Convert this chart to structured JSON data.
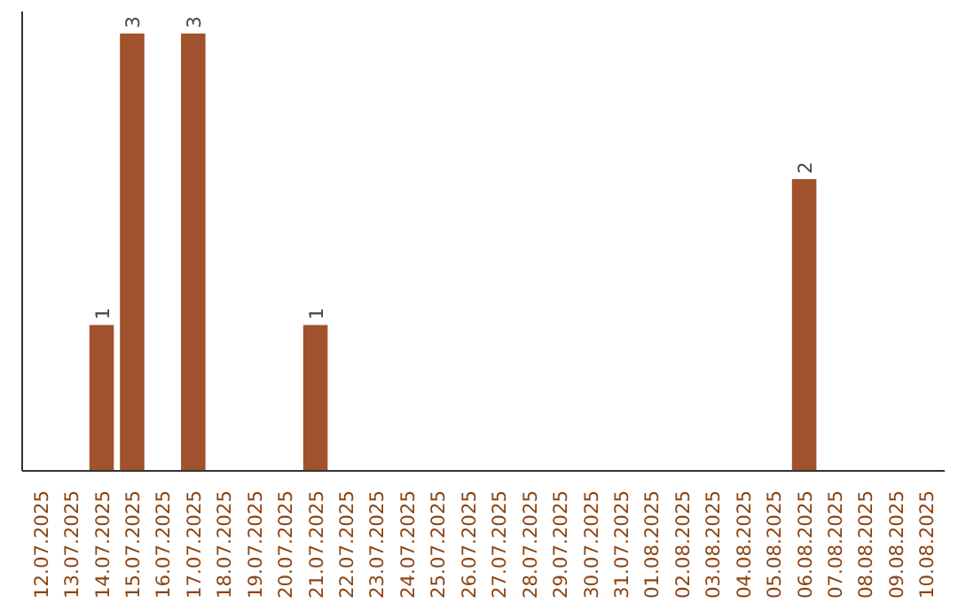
{
  "chart_data": {
    "type": "bar",
    "categories": [
      "12.07.2025",
      "13.07.2025",
      "14.07.2025",
      "15.07.2025",
      "16.07.2025",
      "17.07.2025",
      "18.07.2025",
      "19.07.2025",
      "20.07.2025",
      "21.07.2025",
      "22.07.2025",
      "23.07.2025",
      "24.07.2025",
      "25.07.2025",
      "26.07.2025",
      "27.07.2025",
      "28.07.2025",
      "29.07.2025",
      "30.07.2025",
      "31.07.2025",
      "01.08.2025",
      "02.08.2025",
      "03.08.2025",
      "04.08.2025",
      "05.08.2025",
      "06.08.2025",
      "07.08.2025",
      "08.08.2025",
      "09.08.2025",
      "10.08.2025"
    ],
    "values": [
      0,
      0,
      1,
      3,
      0,
      3,
      0,
      0,
      0,
      1,
      0,
      0,
      0,
      0,
      0,
      0,
      0,
      0,
      0,
      0,
      0,
      0,
      0,
      0,
      0,
      2,
      0,
      0,
      0,
      0
    ],
    "value_labels": [
      null,
      null,
      "1",
      "3",
      null,
      "3",
      null,
      null,
      null,
      "1",
      null,
      null,
      null,
      null,
      null,
      null,
      null,
      null,
      null,
      null,
      null,
      null,
      null,
      null,
      null,
      "2",
      null,
      null,
      null,
      null
    ],
    "color": "#a0522d"
  }
}
